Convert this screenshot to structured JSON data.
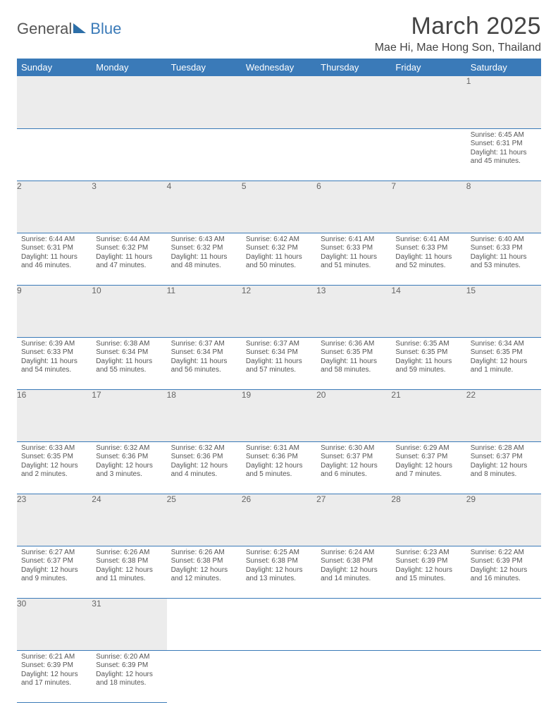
{
  "brand": {
    "part1": "General",
    "part2": "Blue"
  },
  "title": "March 2025",
  "location": "Mae Hi, Mae Hong Son, Thailand",
  "colors": {
    "accent": "#3a7ab8",
    "header_bg": "#3a7ab8",
    "daynum_bg": "#ececec",
    "text": "#555"
  },
  "weekdays": [
    "Sunday",
    "Monday",
    "Tuesday",
    "Wednesday",
    "Thursday",
    "Friday",
    "Saturday"
  ],
  "weeks": [
    [
      null,
      null,
      null,
      null,
      null,
      null,
      {
        "n": "1",
        "sr": "Sunrise: 6:45 AM",
        "ss": "Sunset: 6:31 PM",
        "dl": "Daylight: 11 hours and 45 minutes."
      }
    ],
    [
      {
        "n": "2",
        "sr": "Sunrise: 6:44 AM",
        "ss": "Sunset: 6:31 PM",
        "dl": "Daylight: 11 hours and 46 minutes."
      },
      {
        "n": "3",
        "sr": "Sunrise: 6:44 AM",
        "ss": "Sunset: 6:32 PM",
        "dl": "Daylight: 11 hours and 47 minutes."
      },
      {
        "n": "4",
        "sr": "Sunrise: 6:43 AM",
        "ss": "Sunset: 6:32 PM",
        "dl": "Daylight: 11 hours and 48 minutes."
      },
      {
        "n": "5",
        "sr": "Sunrise: 6:42 AM",
        "ss": "Sunset: 6:32 PM",
        "dl": "Daylight: 11 hours and 50 minutes."
      },
      {
        "n": "6",
        "sr": "Sunrise: 6:41 AM",
        "ss": "Sunset: 6:33 PM",
        "dl": "Daylight: 11 hours and 51 minutes."
      },
      {
        "n": "7",
        "sr": "Sunrise: 6:41 AM",
        "ss": "Sunset: 6:33 PM",
        "dl": "Daylight: 11 hours and 52 minutes."
      },
      {
        "n": "8",
        "sr": "Sunrise: 6:40 AM",
        "ss": "Sunset: 6:33 PM",
        "dl": "Daylight: 11 hours and 53 minutes."
      }
    ],
    [
      {
        "n": "9",
        "sr": "Sunrise: 6:39 AM",
        "ss": "Sunset: 6:33 PM",
        "dl": "Daylight: 11 hours and 54 minutes."
      },
      {
        "n": "10",
        "sr": "Sunrise: 6:38 AM",
        "ss": "Sunset: 6:34 PM",
        "dl": "Daylight: 11 hours and 55 minutes."
      },
      {
        "n": "11",
        "sr": "Sunrise: 6:37 AM",
        "ss": "Sunset: 6:34 PM",
        "dl": "Daylight: 11 hours and 56 minutes."
      },
      {
        "n": "12",
        "sr": "Sunrise: 6:37 AM",
        "ss": "Sunset: 6:34 PM",
        "dl": "Daylight: 11 hours and 57 minutes."
      },
      {
        "n": "13",
        "sr": "Sunrise: 6:36 AM",
        "ss": "Sunset: 6:35 PM",
        "dl": "Daylight: 11 hours and 58 minutes."
      },
      {
        "n": "14",
        "sr": "Sunrise: 6:35 AM",
        "ss": "Sunset: 6:35 PM",
        "dl": "Daylight: 11 hours and 59 minutes."
      },
      {
        "n": "15",
        "sr": "Sunrise: 6:34 AM",
        "ss": "Sunset: 6:35 PM",
        "dl": "Daylight: 12 hours and 1 minute."
      }
    ],
    [
      {
        "n": "16",
        "sr": "Sunrise: 6:33 AM",
        "ss": "Sunset: 6:35 PM",
        "dl": "Daylight: 12 hours and 2 minutes."
      },
      {
        "n": "17",
        "sr": "Sunrise: 6:32 AM",
        "ss": "Sunset: 6:36 PM",
        "dl": "Daylight: 12 hours and 3 minutes."
      },
      {
        "n": "18",
        "sr": "Sunrise: 6:32 AM",
        "ss": "Sunset: 6:36 PM",
        "dl": "Daylight: 12 hours and 4 minutes."
      },
      {
        "n": "19",
        "sr": "Sunrise: 6:31 AM",
        "ss": "Sunset: 6:36 PM",
        "dl": "Daylight: 12 hours and 5 minutes."
      },
      {
        "n": "20",
        "sr": "Sunrise: 6:30 AM",
        "ss": "Sunset: 6:37 PM",
        "dl": "Daylight: 12 hours and 6 minutes."
      },
      {
        "n": "21",
        "sr": "Sunrise: 6:29 AM",
        "ss": "Sunset: 6:37 PM",
        "dl": "Daylight: 12 hours and 7 minutes."
      },
      {
        "n": "22",
        "sr": "Sunrise: 6:28 AM",
        "ss": "Sunset: 6:37 PM",
        "dl": "Daylight: 12 hours and 8 minutes."
      }
    ],
    [
      {
        "n": "23",
        "sr": "Sunrise: 6:27 AM",
        "ss": "Sunset: 6:37 PM",
        "dl": "Daylight: 12 hours and 9 minutes."
      },
      {
        "n": "24",
        "sr": "Sunrise: 6:26 AM",
        "ss": "Sunset: 6:38 PM",
        "dl": "Daylight: 12 hours and 11 minutes."
      },
      {
        "n": "25",
        "sr": "Sunrise: 6:26 AM",
        "ss": "Sunset: 6:38 PM",
        "dl": "Daylight: 12 hours and 12 minutes."
      },
      {
        "n": "26",
        "sr": "Sunrise: 6:25 AM",
        "ss": "Sunset: 6:38 PM",
        "dl": "Daylight: 12 hours and 13 minutes."
      },
      {
        "n": "27",
        "sr": "Sunrise: 6:24 AM",
        "ss": "Sunset: 6:38 PM",
        "dl": "Daylight: 12 hours and 14 minutes."
      },
      {
        "n": "28",
        "sr": "Sunrise: 6:23 AM",
        "ss": "Sunset: 6:39 PM",
        "dl": "Daylight: 12 hours and 15 minutes."
      },
      {
        "n": "29",
        "sr": "Sunrise: 6:22 AM",
        "ss": "Sunset: 6:39 PM",
        "dl": "Daylight: 12 hours and 16 minutes."
      }
    ],
    [
      {
        "n": "30",
        "sr": "Sunrise: 6:21 AM",
        "ss": "Sunset: 6:39 PM",
        "dl": "Daylight: 12 hours and 17 minutes."
      },
      {
        "n": "31",
        "sr": "Sunrise: 6:20 AM",
        "ss": "Sunset: 6:39 PM",
        "dl": "Daylight: 12 hours and 18 minutes."
      },
      null,
      null,
      null,
      null,
      null
    ]
  ]
}
